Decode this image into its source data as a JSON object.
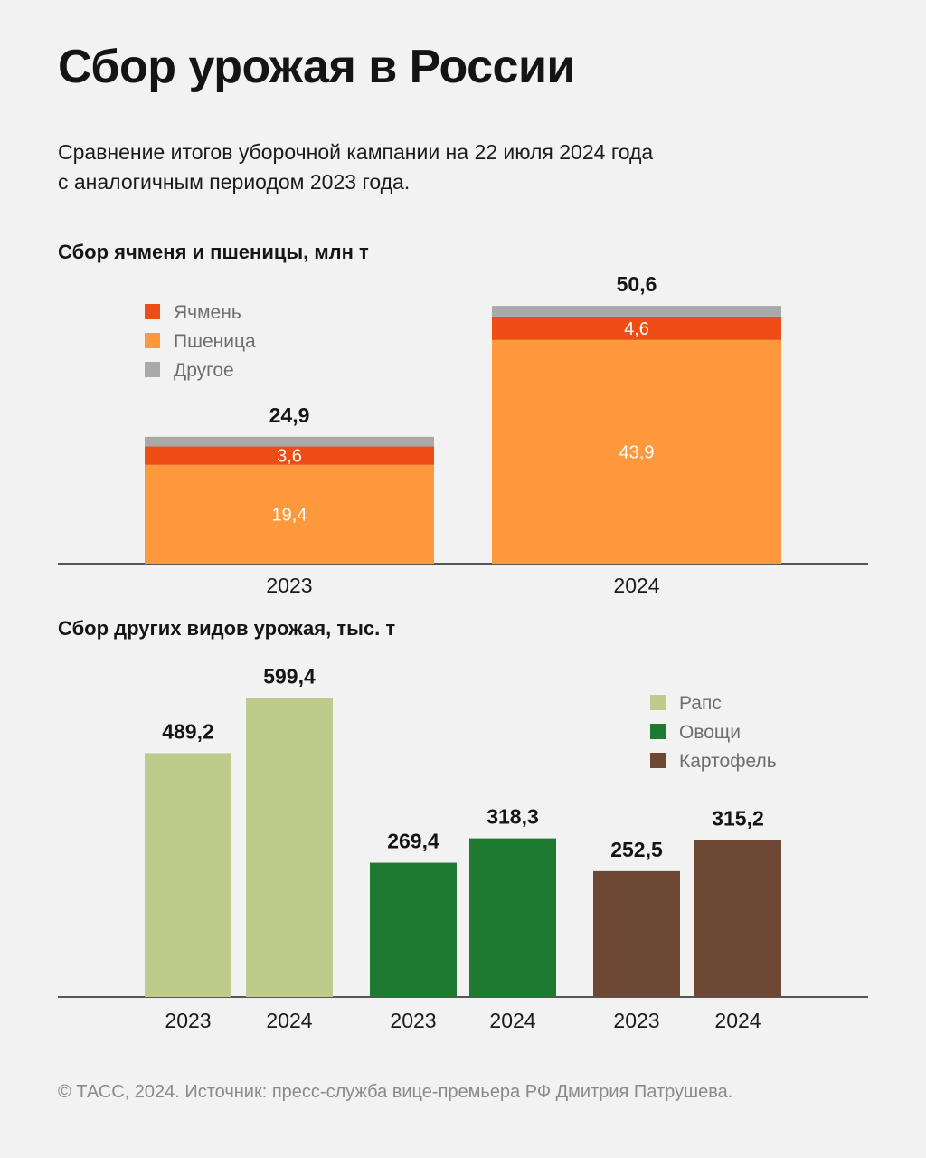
{
  "header": {
    "title": "Сбор урожая в России",
    "subtitle_lines": [
      "Сравнение итогов уборочной кампании на 22 июля 2024 года",
      "с аналогичным периодом 2023 года."
    ]
  },
  "footer": {
    "text": "© ТАСС, 2024. Источник: пресс-служба вице-премьера РФ Дмитрия Патрушева."
  },
  "colors": {
    "barley": "#ee4e16",
    "wheat": "#fd993c",
    "other": "#a9a9a9",
    "rapeseed": "#bfcb8a",
    "vegetables": "#1e7a30",
    "potato": "#6d4834"
  },
  "chart_data": [
    {
      "type": "bar",
      "stacked": true,
      "title": "Сбор ячменя и пшеницы, млн т",
      "categories": [
        "2023",
        "2024"
      ],
      "totals": [
        24.9,
        50.6
      ],
      "totals_labels": [
        "24,9",
        "50,6"
      ],
      "series": [
        {
          "name": "Пшеница",
          "color": "#fd993c",
          "values": [
            19.4,
            43.9
          ],
          "labels": [
            "19,4",
            "43,9"
          ]
        },
        {
          "name": "Ячмень",
          "color": "#ee4e16",
          "values": [
            3.6,
            4.6
          ],
          "labels": [
            "3,6",
            "4,6"
          ]
        },
        {
          "name": "Другое",
          "color": "#a9a9a9",
          "values": [
            1.9,
            2.1
          ],
          "labels": [
            "",
            ""
          ]
        }
      ],
      "legend": [
        "Ячмень",
        "Пшеница",
        "Другое"
      ],
      "legend_position": "top-left",
      "grid": false,
      "ylim": [
        0,
        55
      ]
    },
    {
      "type": "bar",
      "title": "Сбор других видов урожая, тыс. т",
      "groups": [
        {
          "name": "Рапс",
          "color": "#bfcb8a",
          "x": [
            "2023",
            "2024"
          ],
          "values": [
            489.2,
            599.4
          ],
          "labels": [
            "489,2",
            "599,4"
          ]
        },
        {
          "name": "Овощи",
          "color": "#1e7a30",
          "x": [
            "2023",
            "2024"
          ],
          "values": [
            269.4,
            318.3
          ],
          "labels": [
            "269,4",
            "318,3"
          ]
        },
        {
          "name": "Картофель",
          "color": "#6d4834",
          "x": [
            "2023",
            "2024"
          ],
          "values": [
            252.5,
            315.2
          ],
          "labels": [
            "252,5",
            "315,2"
          ]
        }
      ],
      "legend": [
        "Рапс",
        "Овощи",
        "Картофель"
      ],
      "legend_position": "top-right",
      "grid": false,
      "ylim": [
        0,
        640
      ]
    }
  ]
}
